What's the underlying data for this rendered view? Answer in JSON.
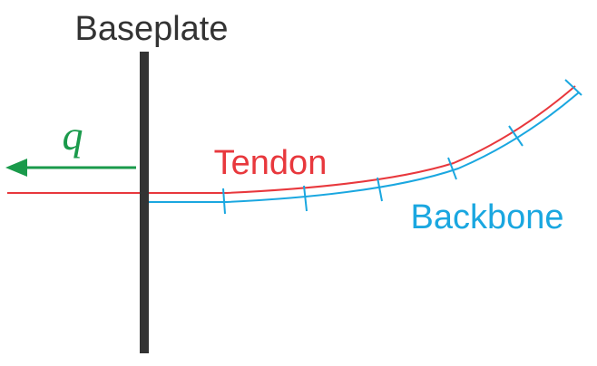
{
  "labels": {
    "baseplate": "Baseplate",
    "tendon": "Tendon",
    "backbone": "Backbone",
    "force": "q"
  },
  "colors": {
    "baseplate": "#333333",
    "tendon": "#e8383d",
    "backbone": "#1aa7e0",
    "force": "#1a9a4b",
    "text": "#333333"
  },
  "icons": {
    "force_arrow": "left-arrow"
  }
}
